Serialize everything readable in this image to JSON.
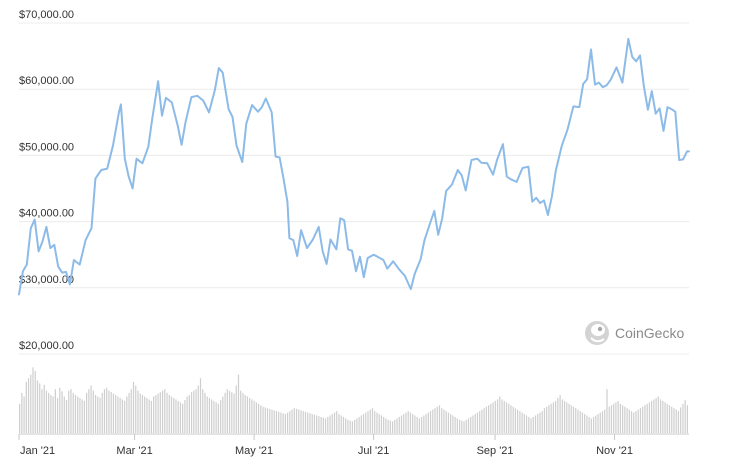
{
  "chart_data": {
    "type": "line",
    "title": "",
    "xlabel": "",
    "ylabel": "",
    "ylim": [
      20000,
      70000
    ],
    "yticks": [
      {
        "value": 70000,
        "label": "$70,000.00"
      },
      {
        "value": 60000,
        "label": "$60,000.00"
      },
      {
        "value": 50000,
        "label": "$50,000.00"
      },
      {
        "value": 40000,
        "label": "$40,000.00"
      },
      {
        "value": 30000,
        "label": "$30,000.00"
      },
      {
        "value": 20000,
        "label": "$20,000.00"
      }
    ],
    "xticks": [
      {
        "date": "2021-01-01",
        "label": "Jan '21"
      },
      {
        "date": "2021-03-01",
        "label": "Mar '21"
      },
      {
        "date": "2021-05-01",
        "label": "May '21"
      },
      {
        "date": "2021-07-01",
        "label": "Jul '21"
      },
      {
        "date": "2021-09-01",
        "label": "Sep '21"
      },
      {
        "date": "2021-11-01",
        "label": "Nov '21"
      }
    ],
    "xlim": [
      "2021-01-01",
      "2021-12-09"
    ],
    "grid": true,
    "series": [
      {
        "name": "",
        "color": "#8dbbe8",
        "points": [
          [
            "2021-01-01",
            29000
          ],
          [
            "2021-01-03",
            32500
          ],
          [
            "2021-01-05",
            33500
          ],
          [
            "2021-01-07",
            39000
          ],
          [
            "2021-01-09",
            40300
          ],
          [
            "2021-01-11",
            35500
          ],
          [
            "2021-01-13",
            37000
          ],
          [
            "2021-01-15",
            39200
          ],
          [
            "2021-01-17",
            36000
          ],
          [
            "2021-01-19",
            36500
          ],
          [
            "2021-01-21",
            33200
          ],
          [
            "2021-01-23",
            32300
          ],
          [
            "2021-01-25",
            32400
          ],
          [
            "2021-01-27",
            30500
          ],
          [
            "2021-01-29",
            34200
          ],
          [
            "2021-02-01",
            33500
          ],
          [
            "2021-02-04",
            37200
          ],
          [
            "2021-02-07",
            39000
          ],
          [
            "2021-02-09",
            46500
          ],
          [
            "2021-02-12",
            47800
          ],
          [
            "2021-02-15",
            48000
          ],
          [
            "2021-02-18",
            51500
          ],
          [
            "2021-02-21",
            56500
          ],
          [
            "2021-02-22",
            57700
          ],
          [
            "2021-02-24",
            49500
          ],
          [
            "2021-02-26",
            46800
          ],
          [
            "2021-02-28",
            45000
          ],
          [
            "2021-03-02",
            49500
          ],
          [
            "2021-03-05",
            48800
          ],
          [
            "2021-03-08",
            51300
          ],
          [
            "2021-03-10",
            55500
          ],
          [
            "2021-03-13",
            61200
          ],
          [
            "2021-03-15",
            56000
          ],
          [
            "2021-03-17",
            58700
          ],
          [
            "2021-03-20",
            58000
          ],
          [
            "2021-03-23",
            54500
          ],
          [
            "2021-03-25",
            51600
          ],
          [
            "2021-03-27",
            55000
          ],
          [
            "2021-03-30",
            58800
          ],
          [
            "2021-04-02",
            59000
          ],
          [
            "2021-04-05",
            58300
          ],
          [
            "2021-04-08",
            56500
          ],
          [
            "2021-04-11",
            59900
          ],
          [
            "2021-04-13",
            63200
          ],
          [
            "2021-04-15",
            62500
          ],
          [
            "2021-04-18",
            57000
          ],
          [
            "2021-04-20",
            55800
          ],
          [
            "2021-04-22",
            51500
          ],
          [
            "2021-04-25",
            49000
          ],
          [
            "2021-04-27",
            54800
          ],
          [
            "2021-04-30",
            57600
          ],
          [
            "2021-05-03",
            56600
          ],
          [
            "2021-05-05",
            57300
          ],
          [
            "2021-05-07",
            58600
          ],
          [
            "2021-05-10",
            56500
          ],
          [
            "2021-05-12",
            49800
          ],
          [
            "2021-05-14",
            49700
          ],
          [
            "2021-05-16",
            46500
          ],
          [
            "2021-05-18",
            43000
          ],
          [
            "2021-05-19",
            37500
          ],
          [
            "2021-05-21",
            37200
          ],
          [
            "2021-05-23",
            34800
          ],
          [
            "2021-05-25",
            38700
          ],
          [
            "2021-05-28",
            36000
          ],
          [
            "2021-05-31",
            37300
          ],
          [
            "2021-06-03",
            39200
          ],
          [
            "2021-06-05",
            35500
          ],
          [
            "2021-06-07",
            33600
          ],
          [
            "2021-06-09",
            37300
          ],
          [
            "2021-06-12",
            35800
          ],
          [
            "2021-06-14",
            40500
          ],
          [
            "2021-06-16",
            40200
          ],
          [
            "2021-06-18",
            35800
          ],
          [
            "2021-06-20",
            35600
          ],
          [
            "2021-06-22",
            32500
          ],
          [
            "2021-06-24",
            34700
          ],
          [
            "2021-06-26",
            31600
          ],
          [
            "2021-06-28",
            34500
          ],
          [
            "2021-07-01",
            35000
          ],
          [
            "2021-07-03",
            34700
          ],
          [
            "2021-07-06",
            34200
          ],
          [
            "2021-07-08",
            32900
          ],
          [
            "2021-07-11",
            34000
          ],
          [
            "2021-07-14",
            32800
          ],
          [
            "2021-07-17",
            31800
          ],
          [
            "2021-07-20",
            29800
          ],
          [
            "2021-07-22",
            32100
          ],
          [
            "2021-07-25",
            34300
          ],
          [
            "2021-07-27",
            37200
          ],
          [
            "2021-07-30",
            39900
          ],
          [
            "2021-08-01",
            41600
          ],
          [
            "2021-08-03",
            38000
          ],
          [
            "2021-08-05",
            40500
          ],
          [
            "2021-08-07",
            44600
          ],
          [
            "2021-08-10",
            45600
          ],
          [
            "2021-08-13",
            47800
          ],
          [
            "2021-08-15",
            47000
          ],
          [
            "2021-08-17",
            44700
          ],
          [
            "2021-08-20",
            49300
          ],
          [
            "2021-08-23",
            49500
          ],
          [
            "2021-08-25",
            48900
          ],
          [
            "2021-08-28",
            48800
          ],
          [
            "2021-08-31",
            47100
          ],
          [
            "2021-09-02",
            49300
          ],
          [
            "2021-09-05",
            51700
          ],
          [
            "2021-09-07",
            46800
          ],
          [
            "2021-09-09",
            46400
          ],
          [
            "2021-09-12",
            46000
          ],
          [
            "2021-09-15",
            48100
          ],
          [
            "2021-09-18",
            48300
          ],
          [
            "2021-09-20",
            43000
          ],
          [
            "2021-09-22",
            43600
          ],
          [
            "2021-09-24",
            42800
          ],
          [
            "2021-09-26",
            43200
          ],
          [
            "2021-09-28",
            41000
          ],
          [
            "2021-09-30",
            43800
          ],
          [
            "2021-10-02",
            47700
          ],
          [
            "2021-10-05",
            51400
          ],
          [
            "2021-10-08",
            53900
          ],
          [
            "2021-10-11",
            57400
          ],
          [
            "2021-10-14",
            57300
          ],
          [
            "2021-10-16",
            60800
          ],
          [
            "2021-10-18",
            61500
          ],
          [
            "2021-10-20",
            66000
          ],
          [
            "2021-10-22",
            60700
          ],
          [
            "2021-10-24",
            61000
          ],
          [
            "2021-10-26",
            60300
          ],
          [
            "2021-10-28",
            60600
          ],
          [
            "2021-10-30",
            61400
          ],
          [
            "2021-11-02",
            63300
          ],
          [
            "2021-11-05",
            61000
          ],
          [
            "2021-11-08",
            67600
          ],
          [
            "2021-11-10",
            64900
          ],
          [
            "2021-11-12",
            64200
          ],
          [
            "2021-11-14",
            65100
          ],
          [
            "2021-11-16",
            60400
          ],
          [
            "2021-11-18",
            56900
          ],
          [
            "2021-11-20",
            59700
          ],
          [
            "2021-11-22",
            56300
          ],
          [
            "2021-11-24",
            57100
          ],
          [
            "2021-11-26",
            53700
          ],
          [
            "2021-11-28",
            57300
          ],
          [
            "2021-11-30",
            57000
          ],
          [
            "2021-12-02",
            56600
          ],
          [
            "2021-12-04",
            49300
          ],
          [
            "2021-12-06",
            49400
          ],
          [
            "2021-12-08",
            50600
          ],
          [
            "2021-12-09",
            50600
          ]
        ]
      }
    ],
    "volume": {
      "color": "#cfcfcf",
      "values": [
        40,
        55,
        50,
        70,
        75,
        80,
        90,
        85,
        72,
        68,
        60,
        66,
        58,
        55,
        52,
        50,
        60,
        48,
        62,
        57,
        50,
        45,
        58,
        60,
        55,
        52,
        50,
        48,
        46,
        44,
        55,
        60,
        65,
        58,
        52,
        50,
        48,
        55,
        60,
        62,
        58,
        56,
        54,
        52,
        50,
        48,
        46,
        44,
        50,
        55,
        60,
        70,
        65,
        58,
        54,
        52,
        50,
        48,
        46,
        44,
        50,
        52,
        54,
        56,
        58,
        60,
        55,
        52,
        50,
        48,
        46,
        44,
        42,
        40,
        45,
        50,
        52,
        56,
        58,
        60,
        65,
        75,
        60,
        55,
        50,
        48,
        46,
        44,
        42,
        40,
        45,
        50,
        55,
        60,
        58,
        56,
        54,
        65,
        80,
        58,
        55,
        52,
        50,
        48,
        46,
        44,
        42,
        40,
        38,
        36,
        35,
        34,
        33,
        32,
        31,
        30,
        29,
        28,
        27,
        26,
        28,
        30,
        32,
        34,
        33,
        32,
        31,
        30,
        29,
        28,
        27,
        26,
        25,
        24,
        23,
        22,
        21,
        20,
        22,
        24,
        26,
        28,
        30,
        26,
        24,
        22,
        20,
        18,
        17,
        16,
        18,
        20,
        22,
        24,
        26,
        28,
        30,
        32,
        34,
        30,
        28,
        26,
        24,
        22,
        20,
        18,
        17,
        16,
        18,
        20,
        22,
        24,
        26,
        28,
        30,
        28,
        26,
        24,
        22,
        20,
        22,
        24,
        26,
        28,
        30,
        32,
        34,
        36,
        38,
        34,
        32,
        30,
        28,
        26,
        24,
        22,
        20,
        18,
        17,
        16,
        18,
        20,
        22,
        24,
        26,
        28,
        30,
        32,
        34,
        36,
        38,
        40,
        42,
        44,
        46,
        50,
        46,
        44,
        42,
        40,
        38,
        36,
        34,
        32,
        30,
        28,
        26,
        24,
        22,
        20,
        22,
        24,
        26,
        28,
        30,
        34,
        36,
        38,
        40,
        42,
        44,
        48,
        52,
        46,
        44,
        42,
        40,
        38,
        36,
        34,
        32,
        30,
        28,
        26,
        24,
        22,
        20,
        22,
        24,
        26,
        28,
        30,
        32,
        60,
        36,
        38,
        40,
        42,
        44,
        40,
        38,
        36,
        34,
        32,
        30,
        28,
        30,
        32,
        34,
        36,
        38,
        40,
        42,
        44,
        46,
        48,
        50,
        46,
        44,
        42,
        40,
        38,
        36,
        34,
        32,
        30,
        35,
        40,
        45,
        38
      ]
    }
  },
  "watermark": {
    "text": "CoinGecko",
    "icon": "gecko-logo-icon"
  }
}
